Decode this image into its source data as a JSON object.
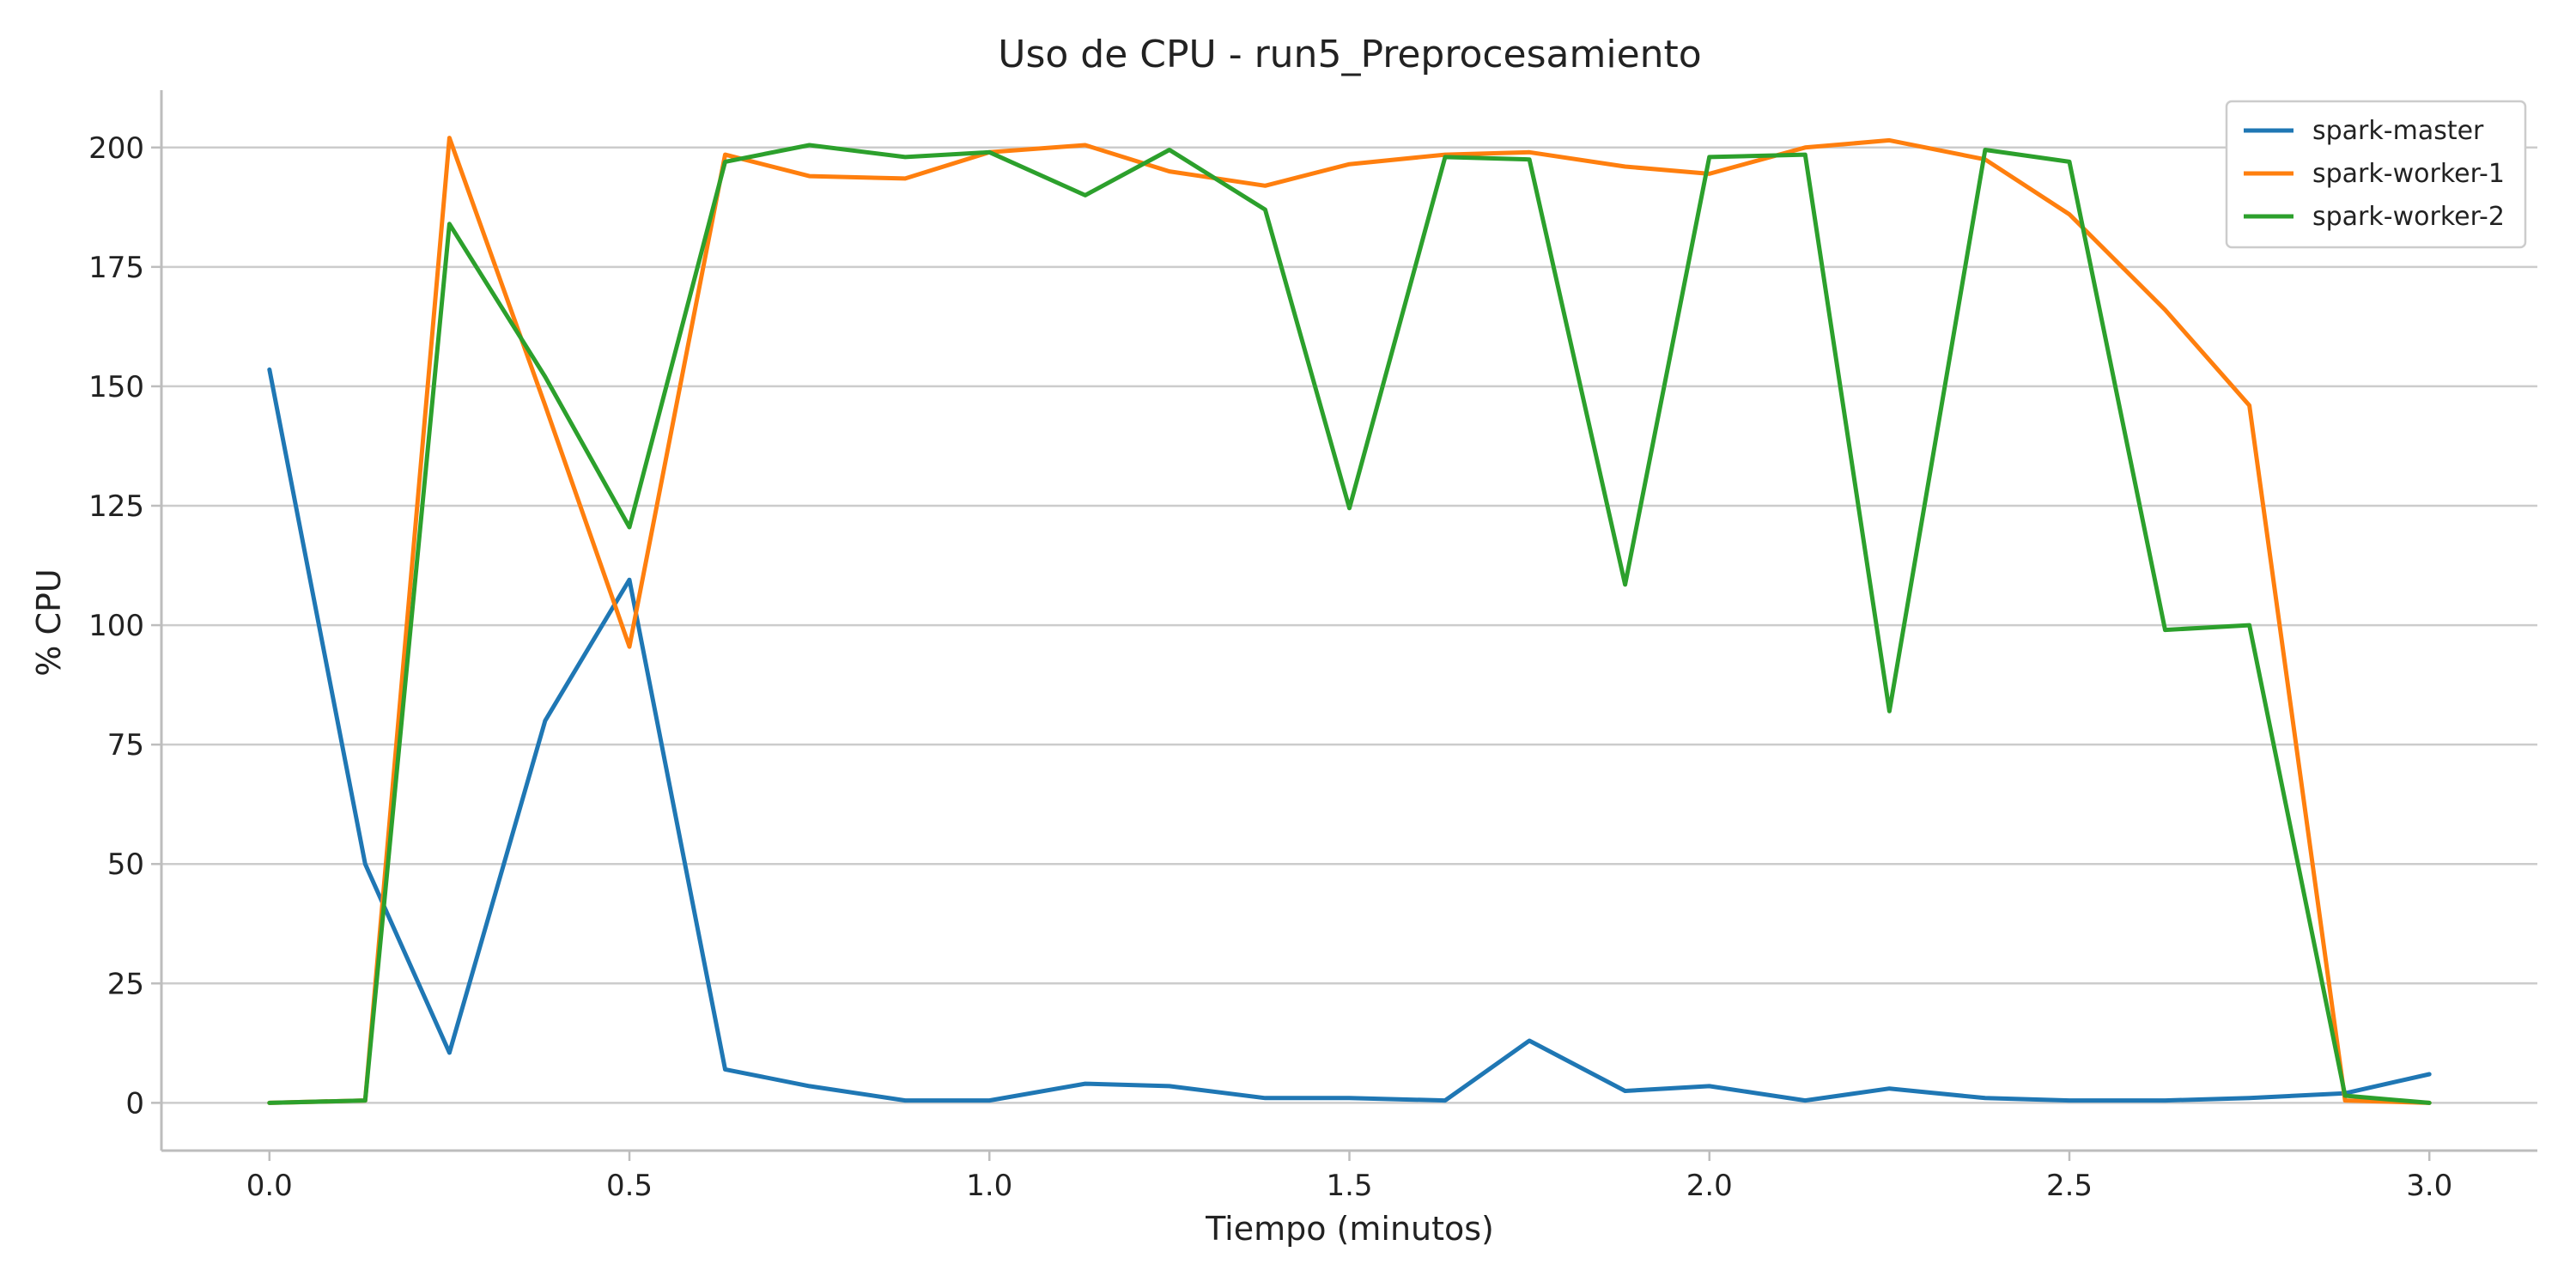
{
  "chart_data": {
    "type": "line",
    "title": "Uso de CPU - run5_Preprocesamiento",
    "xlabel": "Tiempo (minutos)",
    "ylabel": "% CPU",
    "xlim": [
      -0.15,
      3.15
    ],
    "ylim": [
      -10,
      212
    ],
    "xticks": [
      0.0,
      0.5,
      1.0,
      1.5,
      2.0,
      2.5,
      3.0
    ],
    "xtick_labels": [
      "0.0",
      "0.5",
      "1.0",
      "1.5",
      "2.0",
      "2.5",
      "3.0"
    ],
    "yticks": [
      0,
      25,
      50,
      75,
      100,
      125,
      150,
      175,
      200
    ],
    "ytick_labels": [
      "0",
      "25",
      "50",
      "75",
      "100",
      "125",
      "150",
      "175",
      "200"
    ],
    "grid": "horizontal",
    "legend_position": "top-right",
    "x": [
      0.0,
      0.133,
      0.25,
      0.383,
      0.5,
      0.633,
      0.75,
      0.883,
      1.0,
      1.133,
      1.25,
      1.383,
      1.5,
      1.633,
      1.75,
      1.883,
      2.0,
      2.133,
      2.25,
      2.383,
      2.5,
      2.633,
      2.75,
      2.883,
      3.0
    ],
    "series": [
      {
        "name": "spark-master",
        "color": "#1f77b4",
        "values": [
          153.5,
          50,
          10.5,
          80,
          109.5,
          7,
          3.5,
          0.5,
          0.5,
          4,
          3.5,
          1,
          1,
          0.5,
          13,
          2.5,
          3.5,
          0.5,
          3,
          1,
          0.5,
          0.5,
          1,
          2,
          6
        ]
      },
      {
        "name": "spark-worker-1",
        "color": "#ff7f0e",
        "values": [
          0,
          0.5,
          202,
          146,
          95.5,
          198.5,
          194,
          193.5,
          199,
          200.5,
          195,
          192,
          196.5,
          198.5,
          199,
          196,
          194.5,
          200,
          201.5,
          197.5,
          186,
          166,
          146,
          0.5,
          0
        ]
      },
      {
        "name": "spark-worker-2",
        "color": "#2ca02c",
        "values": [
          0,
          0.5,
          184,
          152,
          120.5,
          197,
          200.5,
          198,
          199,
          190,
          199.5,
          187,
          124.5,
          198,
          197.5,
          108.5,
          198,
          198.5,
          82,
          199.5,
          197,
          99,
          100,
          1.5,
          0
        ]
      }
    ]
  }
}
